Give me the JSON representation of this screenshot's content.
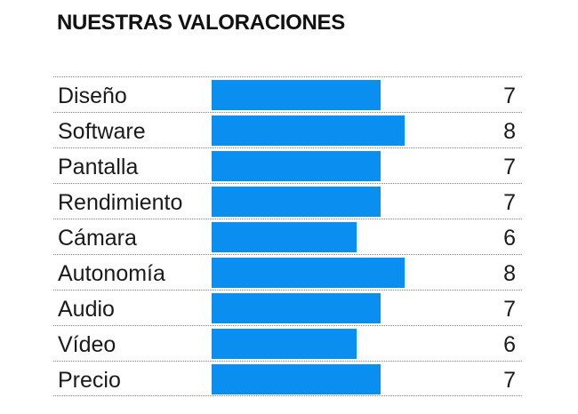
{
  "chart_data": {
    "type": "bar",
    "orientation": "horizontal",
    "title": "NUESTRAS VALORACIONES",
    "categories": [
      "Diseño",
      "Software",
      "Pantalla",
      "Rendimiento",
      "Cámara",
      "Autonomía",
      "Audio",
      "Vídeo",
      "Precio"
    ],
    "values": [
      7,
      8,
      7,
      7,
      6,
      8,
      7,
      6,
      7
    ],
    "xlim": [
      0,
      10
    ],
    "grid": false,
    "bar_color": "#0a8eef",
    "data_labels": true
  }
}
